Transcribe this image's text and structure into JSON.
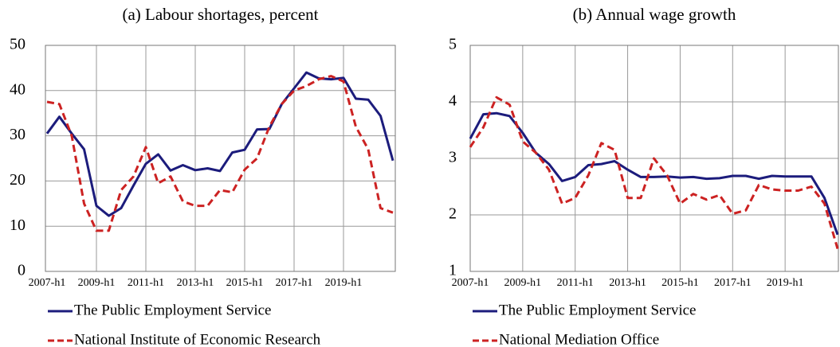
{
  "chart_data": [
    {
      "type": "line",
      "title": "(a) Labour shortages, percent",
      "categories": [
        "2007-h1",
        null,
        null,
        null,
        "2009-h1",
        null,
        null,
        null,
        "2011-h1",
        null,
        null,
        null,
        "2013-h1",
        null,
        null,
        null,
        "2015-h1",
        null,
        null,
        null,
        "2017-h1",
        null,
        null,
        null,
        "2019-h1",
        null,
        null,
        null,
        null
      ],
      "series": [
        {
          "name": "The Public Employment Service",
          "color": "#1c1c7c",
          "linestyle": "solid",
          "values": [
            30.5,
            34.2,
            30.5,
            27,
            14.5,
            12.3,
            14,
            19,
            23.8,
            25.9,
            22.3,
            23.5,
            22.4,
            22.8,
            22.2,
            26.3,
            26.9,
            31.4,
            31.5,
            37,
            40.5,
            44,
            42.7,
            42.5,
            42.8,
            38.2,
            38,
            34.4,
            24.5
          ]
        },
        {
          "name": "National Institute of Economic Research",
          "color": "#cc2222",
          "linestyle": "dashed",
          "values": [
            37.5,
            37,
            30,
            15,
            9,
            9,
            18,
            21,
            27.5,
            19.5,
            21,
            15.5,
            14.5,
            14.5,
            18,
            17.5,
            22.5,
            25,
            32,
            37,
            40,
            41,
            42.5,
            43.2,
            42,
            32,
            27,
            14,
            13
          ]
        }
      ],
      "ylim": [
        0,
        50
      ],
      "yticks": [
        0,
        10,
        20,
        30,
        40,
        50
      ],
      "grid": true,
      "legend": "bottom"
    },
    {
      "type": "line",
      "title": "(b) Annual wage growth",
      "categories": [
        "2007-h1",
        null,
        null,
        null,
        "2009-h1",
        null,
        null,
        null,
        "2011-h1",
        null,
        null,
        null,
        "2013-h1",
        null,
        null,
        null,
        "2015-h1",
        null,
        null,
        null,
        "2017-h1",
        null,
        null,
        null,
        "2019-h1",
        null,
        null,
        null,
        null
      ],
      "series": [
        {
          "name": "The Public Employment Service",
          "color": "#1c1c7c",
          "linestyle": "solid",
          "values": [
            3.35,
            3.78,
            3.8,
            3.75,
            3.45,
            3.1,
            2.9,
            2.6,
            2.67,
            2.88,
            2.9,
            2.95,
            2.8,
            2.67,
            2.67,
            2.68,
            2.66,
            2.67,
            2.64,
            2.65,
            2.69,
            2.69,
            2.64,
            2.69,
            2.68,
            2.68,
            2.68,
            2.3,
            1.65
          ]
        },
        {
          "name": "National Mediation Office",
          "color": "#cc2222",
          "linestyle": "dashed",
          "values": [
            3.2,
            3.55,
            4.08,
            3.95,
            3.3,
            3.1,
            2.8,
            2.2,
            2.3,
            2.7,
            3.27,
            3.15,
            2.3,
            2.3,
            3,
            2.7,
            2.2,
            2.37,
            2.27,
            2.35,
            2.02,
            2.08,
            2.53,
            2.45,
            2.43,
            2.43,
            2.5,
            2.2,
            1.4
          ]
        }
      ],
      "ylim": [
        1,
        5
      ],
      "yticks": [
        1,
        2,
        3,
        4,
        5
      ],
      "grid": true,
      "legend": "bottom"
    }
  ]
}
